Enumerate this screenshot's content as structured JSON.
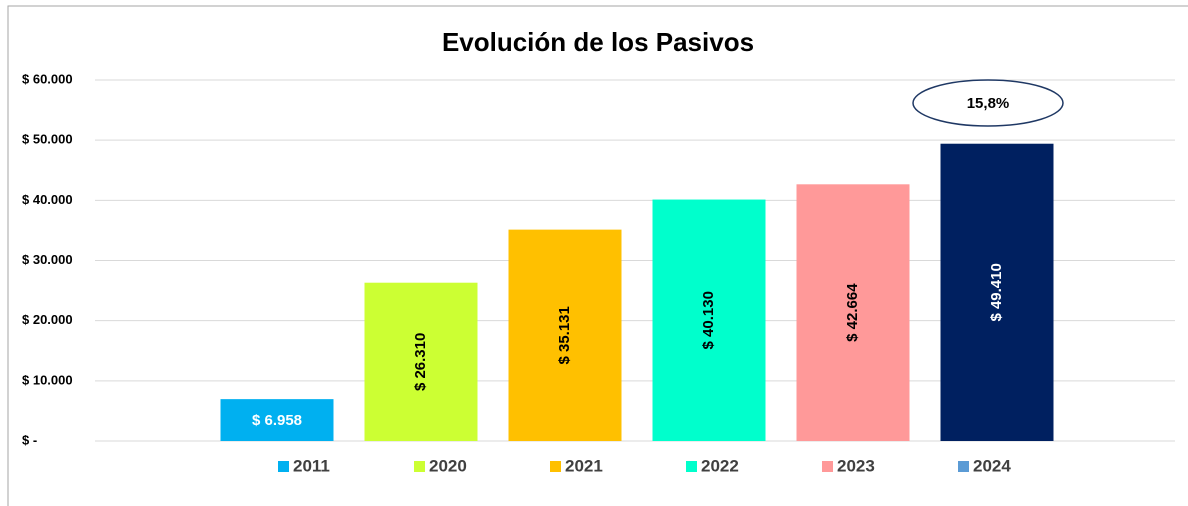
{
  "chart_data": {
    "type": "bar",
    "title": "Evolución de los Pasivos",
    "categories": [
      "2011",
      "2020",
      "2021",
      "2022",
      "2023",
      "2024"
    ],
    "values": [
      6958,
      26310,
      35131,
      40130,
      42664,
      49410
    ],
    "value_labels": [
      "$ 6.958",
      "$ 26.310",
      "$ 35.131",
      "$ 40.130",
      "$ 42.664",
      "$ 49.410"
    ],
    "colors": [
      "#00b0f0",
      "#ccff33",
      "#ffc000",
      "#00ffcc",
      "#ff9999",
      "#002060"
    ],
    "legend_colors": [
      "#00b0f0",
      "#ccff33",
      "#ffc000",
      "#00ffcc",
      "#ff9999",
      "#5b9bd5"
    ],
    "label_colors": [
      "#ffffff",
      "#000000",
      "#000000",
      "#000000",
      "#000000",
      "#ffffff"
    ],
    "annotation": "15,8%",
    "ylim": [
      0,
      60000
    ],
    "yticks": [
      {
        "value": 0,
        "label": "$ -"
      },
      {
        "value": 10000,
        "label": "$ 10.000"
      },
      {
        "value": 20000,
        "label": "$ 20.000"
      },
      {
        "value": 30000,
        "label": "$ 30.000"
      },
      {
        "value": 40000,
        "label": "$ 40.000"
      },
      {
        "value": 50000,
        "label": "$ 50.000"
      },
      {
        "value": 60000,
        "label": "$ 60.000"
      }
    ],
    "grid": true,
    "legend": "bottom"
  }
}
